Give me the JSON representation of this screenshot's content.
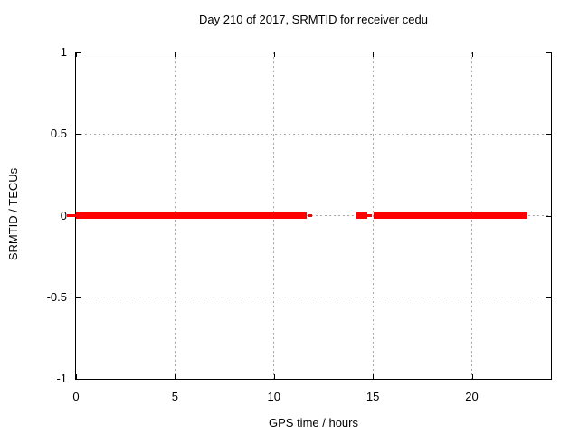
{
  "window": {
    "background_color": "#ffffff",
    "text_color": "#000000"
  },
  "chart_data": {
    "type": "line",
    "title": "Day 210 of 2017, SRMTID for receiver cedu",
    "xlabel": "GPS time / hours",
    "ylabel": "SRMTID / TECUs",
    "xlim": [
      0,
      24
    ],
    "ylim": [
      -1,
      1
    ],
    "xticks": {
      "values": [
        0,
        5,
        10,
        15,
        20
      ],
      "labels": [
        "0",
        "5",
        "10",
        "15",
        "20"
      ]
    },
    "yticks": {
      "values": [
        1,
        0.5,
        0,
        -0.5,
        -1
      ],
      "labels": [
        "1",
        "0.5",
        "0",
        "-0.5",
        "-1"
      ]
    },
    "grid": {
      "enabled": true,
      "style": "dotted",
      "color": "#a8a8a8",
      "x_gridlines": [
        5,
        10,
        15,
        20
      ],
      "y_gridlines": [
        0.5,
        0,
        -0.5
      ]
    },
    "frame_color": "#000000",
    "legend": "none",
    "series": [
      {
        "name": "SRMTID",
        "color": "#ff0000",
        "y_value": 0,
        "style": "thick horizontal segments at y=0",
        "segments_hours": [
          {
            "from": -0.45,
            "to": 0.05,
            "thickness_px": 3
          },
          {
            "from": 0,
            "to": 11.66,
            "thickness_px": 7
          },
          {
            "from": 11.75,
            "to": 11.93,
            "thickness_px": 3
          },
          {
            "from": 14.16,
            "to": 14.71,
            "thickness_px": 7
          },
          {
            "from": 14.74,
            "to": 14.94,
            "thickness_px": 3
          },
          {
            "from": 15.03,
            "to": 22.81,
            "thickness_px": 7
          }
        ]
      }
    ]
  }
}
